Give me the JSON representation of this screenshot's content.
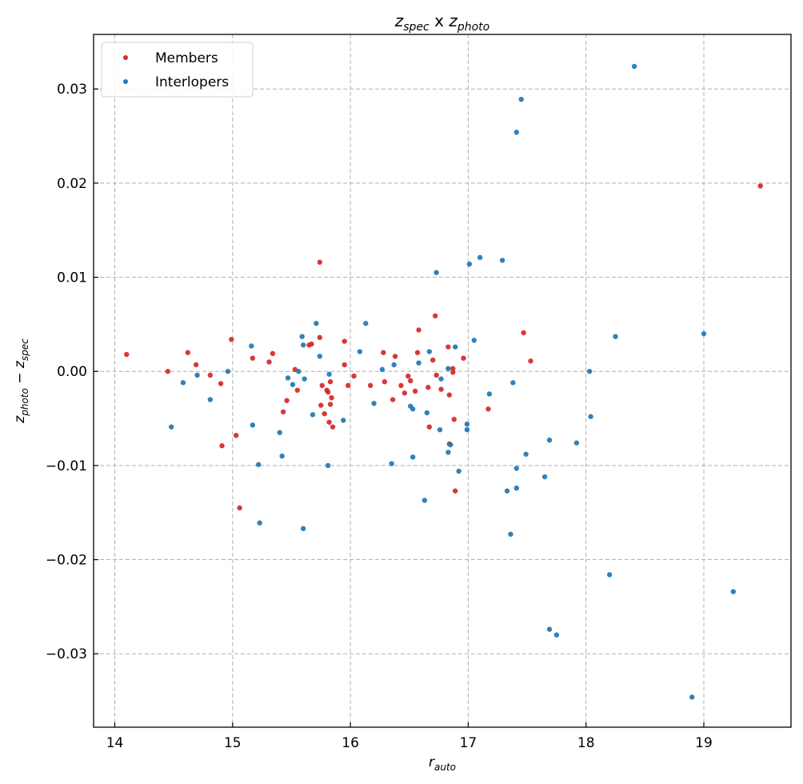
{
  "chart_data": {
    "type": "scatter",
    "title": {
      "z1": "z",
      "sub1": "spec",
      "mid": " x ",
      "z2": "z",
      "sub2": "photo"
    },
    "xlabel": {
      "main": "r",
      "sub": "auto"
    },
    "ylabel": {
      "z1": "z",
      "sub1": "photo",
      "op": " − ",
      "z2": "z",
      "sub2": "spec"
    },
    "xlim": [
      13.82,
      19.74
    ],
    "ylim": [
      -0.0378,
      0.0358
    ],
    "xticks": [
      14,
      15,
      16,
      17,
      18,
      19
    ],
    "xtick_labels": [
      "14",
      "15",
      "16",
      "17",
      "18",
      "19"
    ],
    "yticks": [
      -0.03,
      -0.02,
      -0.01,
      0.0,
      0.01,
      0.02,
      0.03
    ],
    "ytick_labels": [
      "−0.03",
      "−0.02",
      "−0.01",
      "0.00",
      "0.01",
      "0.02",
      "0.03"
    ],
    "grid": true,
    "legend_placement": "top-left",
    "series": [
      {
        "name": "Members",
        "color": "#d62728",
        "points": [
          [
            14.1,
            0.0018
          ],
          [
            14.45,
            0.0
          ],
          [
            14.62,
            0.002
          ],
          [
            14.69,
            0.0007
          ],
          [
            14.81,
            -0.0004
          ],
          [
            14.9,
            -0.0013
          ],
          [
            14.91,
            -0.0079
          ],
          [
            14.99,
            0.0034
          ],
          [
            15.03,
            -0.0068
          ],
          [
            15.06,
            -0.0145
          ],
          [
            15.17,
            0.0014
          ],
          [
            15.31,
            0.001
          ],
          [
            15.34,
            0.0019
          ],
          [
            15.43,
            -0.0043
          ],
          [
            15.46,
            -0.0031
          ],
          [
            15.53,
            0.0002
          ],
          [
            15.55,
            -0.002
          ],
          [
            15.65,
            0.0028
          ],
          [
            15.67,
            0.0029
          ],
          [
            15.74,
            0.0116
          ],
          [
            15.74,
            0.0036
          ],
          [
            15.75,
            -0.0036
          ],
          [
            15.76,
            -0.0015
          ],
          [
            15.78,
            -0.0045
          ],
          [
            15.8,
            -0.002
          ],
          [
            15.81,
            -0.0022
          ],
          [
            15.82,
            -0.0054
          ],
          [
            15.83,
            -0.0011
          ],
          [
            15.83,
            -0.0035
          ],
          [
            15.84,
            -0.0028
          ],
          [
            15.85,
            -0.0059
          ],
          [
            15.95,
            0.0032
          ],
          [
            15.95,
            0.0007
          ],
          [
            15.98,
            -0.0015
          ],
          [
            16.03,
            -0.0005
          ],
          [
            16.17,
            -0.0015
          ],
          [
            16.28,
            0.002
          ],
          [
            16.29,
            -0.0011
          ],
          [
            16.36,
            -0.003
          ],
          [
            16.38,
            0.0016
          ],
          [
            16.43,
            -0.0015
          ],
          [
            16.46,
            -0.0023
          ],
          [
            16.49,
            -0.0005
          ],
          [
            16.51,
            -0.001
          ],
          [
            16.55,
            -0.0021
          ],
          [
            16.57,
            0.002
          ],
          [
            16.58,
            0.0044
          ],
          [
            16.66,
            -0.0017
          ],
          [
            16.67,
            -0.0059
          ],
          [
            16.7,
            0.0012
          ],
          [
            16.72,
            0.0059
          ],
          [
            16.73,
            -0.0004
          ],
          [
            16.77,
            -0.0019
          ],
          [
            16.83,
            0.0026
          ],
          [
            16.84,
            -0.0025
          ],
          [
            16.84,
            -0.0077
          ],
          [
            16.87,
            0.0003
          ],
          [
            16.87,
            -0.0001
          ],
          [
            16.88,
            -0.0051
          ],
          [
            16.89,
            -0.0127
          ],
          [
            16.96,
            0.0014
          ],
          [
            17.17,
            -0.004
          ],
          [
            17.47,
            0.0041
          ],
          [
            17.53,
            0.0011
          ],
          [
            19.48,
            0.0197
          ]
        ]
      },
      {
        "name": "Interlopers",
        "color": "#1f77b4",
        "points": [
          [
            14.48,
            -0.0059
          ],
          [
            14.58,
            -0.0012
          ],
          [
            14.7,
            -0.0004
          ],
          [
            14.81,
            -0.003
          ],
          [
            14.96,
            0.0
          ],
          [
            15.16,
            0.0027
          ],
          [
            15.17,
            -0.0057
          ],
          [
            15.22,
            -0.0099
          ],
          [
            15.23,
            -0.0161
          ],
          [
            15.4,
            -0.0065
          ],
          [
            15.42,
            -0.009
          ],
          [
            15.47,
            -0.0007
          ],
          [
            15.51,
            -0.0014
          ],
          [
            15.56,
            0.0
          ],
          [
            15.59,
            0.0037
          ],
          [
            15.6,
            0.0028
          ],
          [
            15.61,
            -0.0008
          ],
          [
            15.68,
            -0.0046
          ],
          [
            15.71,
            0.0051
          ],
          [
            15.74,
            0.0016
          ],
          [
            15.82,
            -0.0003
          ],
          [
            15.81,
            -0.01
          ],
          [
            15.6,
            -0.0167
          ],
          [
            15.94,
            -0.0052
          ],
          [
            16.08,
            0.0021
          ],
          [
            16.13,
            0.0051
          ],
          [
            16.2,
            -0.0034
          ],
          [
            16.27,
            0.0002
          ],
          [
            16.35,
            -0.0098
          ],
          [
            16.37,
            0.0007
          ],
          [
            16.51,
            -0.0037
          ],
          [
            16.53,
            -0.004
          ],
          [
            16.53,
            -0.0091
          ],
          [
            16.58,
            0.0009
          ],
          [
            16.63,
            -0.0137
          ],
          [
            16.65,
            -0.0044
          ],
          [
            16.67,
            0.0021
          ],
          [
            16.73,
            0.0105
          ],
          [
            16.76,
            -0.0062
          ],
          [
            16.77,
            -0.0008
          ],
          [
            16.83,
            0.0003
          ],
          [
            16.83,
            -0.0086
          ],
          [
            16.85,
            -0.0078
          ],
          [
            16.89,
            0.0026
          ],
          [
            16.92,
            -0.0106
          ],
          [
            16.99,
            -0.0062
          ],
          [
            16.99,
            -0.0056
          ],
          [
            17.01,
            0.0114
          ],
          [
            17.05,
            0.0033
          ],
          [
            17.1,
            0.0121
          ],
          [
            17.18,
            -0.0024
          ],
          [
            17.29,
            0.0118
          ],
          [
            17.33,
            -0.0127
          ],
          [
            17.41,
            -0.0103
          ],
          [
            17.36,
            -0.0173
          ],
          [
            17.38,
            -0.0012
          ],
          [
            17.41,
            0.0254
          ],
          [
            17.45,
            0.0289
          ],
          [
            17.49,
            -0.0088
          ],
          [
            17.41,
            -0.0124
          ],
          [
            17.65,
            -0.0112
          ],
          [
            17.69,
            -0.0073
          ],
          [
            17.69,
            -0.0274
          ],
          [
            17.75,
            -0.028
          ],
          [
            17.92,
            -0.0076
          ],
          [
            18.03,
            0.0
          ],
          [
            18.04,
            -0.0048
          ],
          [
            18.2,
            -0.0216
          ],
          [
            18.25,
            0.0037
          ],
          [
            18.41,
            0.0324
          ],
          [
            18.9,
            -0.0346
          ],
          [
            19.0,
            0.004
          ],
          [
            19.25,
            -0.0234
          ]
        ]
      }
    ]
  }
}
